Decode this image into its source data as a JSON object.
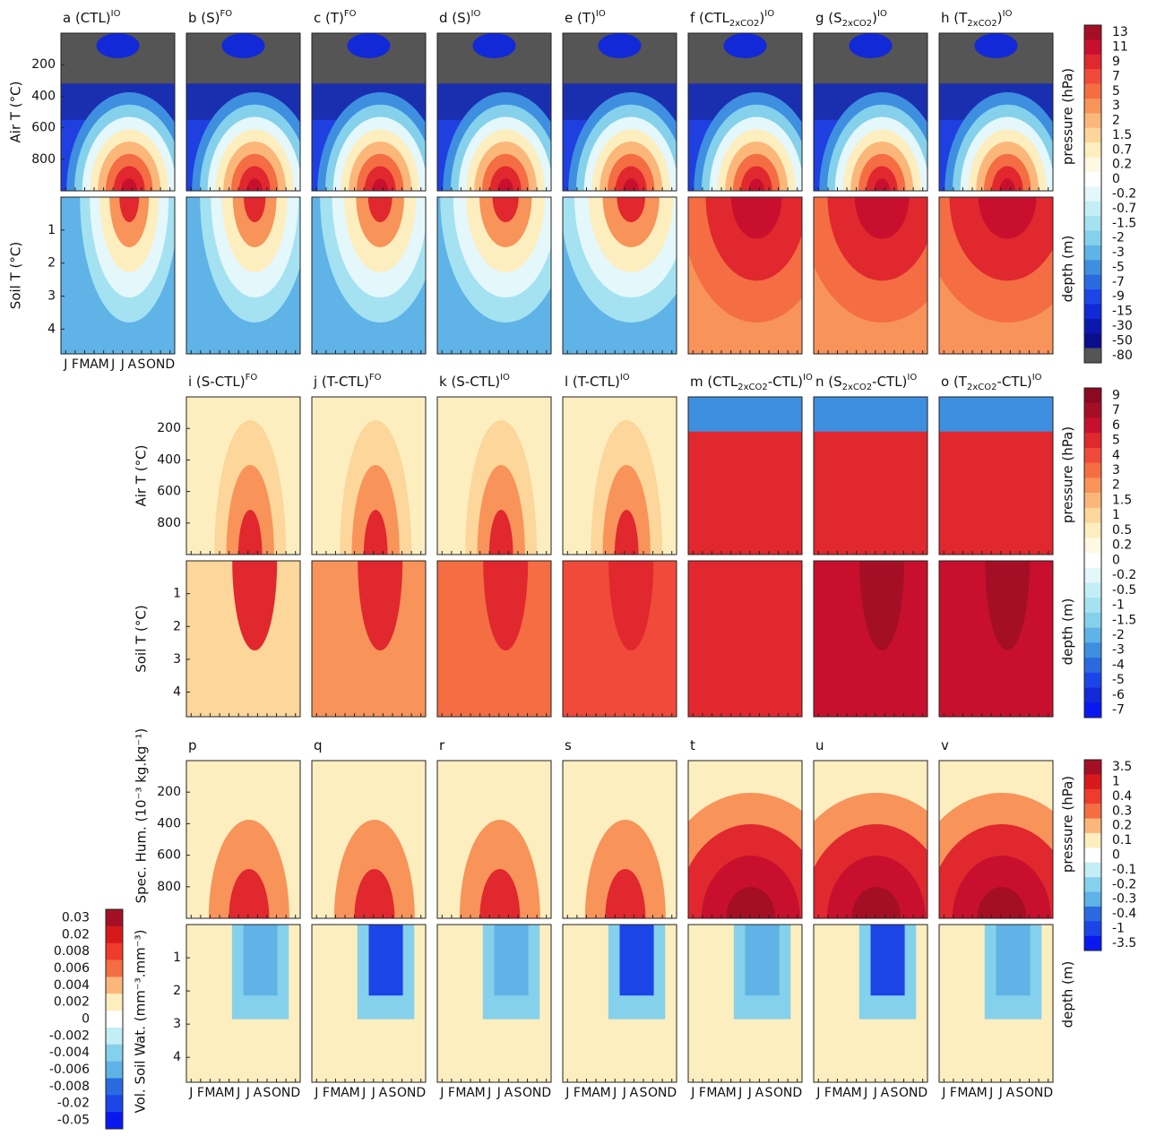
{
  "months": [
    "J",
    "F",
    "M",
    "A",
    "M",
    "J",
    "J",
    "A",
    "S",
    "O",
    "N",
    "D"
  ],
  "ylim_pressure": [
    0,
    1000
  ],
  "pressure_ticks": [
    200,
    400,
    600,
    800
  ],
  "ylim_depth": [
    0,
    4.75
  ],
  "depth_ticks": [
    1,
    2,
    3,
    4
  ],
  "groups": [
    {
      "row_labels": [
        "Air T (°C)",
        "Soil T (°C)"
      ],
      "panels": [
        {
          "title": [
            {
              "text": "a (CTL)"
            },
            {
              "sup": "IO"
            }
          ]
        },
        {
          "title": [
            {
              "text": "b (S)"
            },
            {
              "sup": "FO"
            }
          ]
        },
        {
          "title": [
            {
              "text": "c (T)"
            },
            {
              "sup": "FO"
            }
          ]
        },
        {
          "title": [
            {
              "text": "d (S)"
            },
            {
              "sup": "IO"
            }
          ]
        },
        {
          "title": [
            {
              "text": "e (T)"
            },
            {
              "sup": "IO"
            }
          ]
        },
        {
          "title": [
            {
              "text": "f (CTL"
            },
            {
              "sub": "2xCO2"
            },
            {
              "text": ")"
            },
            {
              "sup": "IO"
            }
          ]
        },
        {
          "title": [
            {
              "text": "g (S"
            },
            {
              "sub": "2xCO2"
            },
            {
              "text": ")"
            },
            {
              "sup": "IO"
            }
          ]
        },
        {
          "title": [
            {
              "text": "h (T"
            },
            {
              "sub": "2xCO2"
            },
            {
              "text": ")"
            },
            {
              "sup": "IO"
            }
          ]
        }
      ]
    },
    {
      "row_labels": [
        "Air T (°C)",
        "Soil T (°C)"
      ],
      "panels": [
        {
          "title": [
            {
              "text": "i (S-CTL)"
            },
            {
              "sup": "FO"
            }
          ]
        },
        {
          "title": [
            {
              "text": "j (T-CTL)"
            },
            {
              "sup": "FO"
            }
          ]
        },
        {
          "title": [
            {
              "text": "k (S-CTL)"
            },
            {
              "sup": "IO"
            }
          ]
        },
        {
          "title": [
            {
              "text": "l (T-CTL)"
            },
            {
              "sup": "IO"
            }
          ]
        },
        {
          "title": [
            {
              "text": "m (CTL"
            },
            {
              "sub": "2xCO2"
            },
            {
              "text": "-CTL)"
            },
            {
              "sup": "IO"
            }
          ]
        },
        {
          "title": [
            {
              "text": "n (S"
            },
            {
              "sub": "2xCO2"
            },
            {
              "text": "-CTL)"
            },
            {
              "sup": "IO"
            }
          ]
        },
        {
          "title": [
            {
              "text": "o (T"
            },
            {
              "sub": "2xCO2"
            },
            {
              "text": "-CTL)"
            },
            {
              "sup": "IO"
            }
          ]
        }
      ]
    },
    {
      "row_labels": [
        "Spec. Hum. (10⁻³ kg.kg⁻¹)"
      ],
      "panels": [
        {
          "title": [
            {
              "text": "p"
            }
          ]
        },
        {
          "title": [
            {
              "text": "q"
            }
          ]
        },
        {
          "title": [
            {
              "text": "r"
            }
          ]
        },
        {
          "title": [
            {
              "text": "s"
            }
          ]
        },
        {
          "title": [
            {
              "text": "t"
            }
          ]
        },
        {
          "title": [
            {
              "text": "u"
            }
          ]
        },
        {
          "title": [
            {
              "text": "v"
            }
          ]
        }
      ]
    }
  ],
  "colorbars": [
    {
      "labels": [
        "pressure (hPa)",
        "depth (m)"
      ],
      "levels": [
        13,
        11,
        9,
        7,
        5,
        3,
        2,
        1.5,
        0.7,
        0.2,
        0,
        -0.2,
        -0.7,
        -1.5,
        -2,
        -3,
        -5,
        -7,
        -9,
        -15,
        -30,
        -50,
        -80
      ],
      "colors": [
        "#a50f26",
        "#c8102e",
        "#e0282e",
        "#f04a3a",
        "#f46d43",
        "#f8935a",
        "#fbb77a",
        "#fcd69a",
        "#fdeebf",
        "#fff8e3",
        "#ffffff",
        "#e4f7fb",
        "#c4eef6",
        "#a4e2f1",
        "#85d1ec",
        "#5fb3e6",
        "#3e8fe0",
        "#2a6ae0",
        "#1c45e8",
        "#1229d8",
        "#0a18b0",
        "#0a0e8a",
        "#555555"
      ]
    },
    {
      "labels": [
        "pressure (hPa)",
        "depth (m)"
      ],
      "levels": [
        9,
        7,
        6,
        5,
        4,
        3,
        2,
        1.5,
        1,
        0.5,
        0.2,
        0,
        -0.2,
        -0.5,
        -1,
        -1.5,
        -2,
        -3,
        -4,
        -5,
        -6,
        -7
      ],
      "colors": [
        "#8b0a22",
        "#a50f26",
        "#c8102e",
        "#e0282e",
        "#f04a3a",
        "#f46d43",
        "#f8935a",
        "#fbb77a",
        "#fcd69a",
        "#fdeebf",
        "#fff8e3",
        "#ffffff",
        "#e4f7fb",
        "#c4eef6",
        "#a4e2f1",
        "#85d1ec",
        "#5fb3e6",
        "#3e8fe0",
        "#2a6ae0",
        "#1c45e8",
        "#1229d8",
        "#0a18f0"
      ]
    },
    {
      "labels": [
        "pressure (hPa)",
        "depth (m)"
      ],
      "levels": [
        3.5,
        1,
        0.4,
        0.3,
        0.2,
        0.1,
        0,
        -0.1,
        -0.2,
        -0.3,
        -0.4,
        -1,
        -3.5
      ],
      "colors": [
        "#a50f26",
        "#d7191c",
        "#ef3b2c",
        "#f46d43",
        "#fbb77a",
        "#fdeebf",
        "#ffffff",
        "#c4eef6",
        "#85d1ec",
        "#5fb3e6",
        "#2a6ae0",
        "#1c45e8",
        "#0a18f0"
      ]
    },
    {
      "labels": [
        "Vol. Soil Wat. (mm⁻³.mm⁻³)"
      ],
      "levels": [
        0.03,
        0.02,
        0.008,
        0.006,
        0.004,
        0.002,
        0,
        -0.002,
        -0.004,
        -0.006,
        -0.008,
        -0.02,
        -0.05
      ],
      "colors": [
        "#a50f26",
        "#d7191c",
        "#ef3b2c",
        "#f46d43",
        "#fbb77a",
        "#fdeebf",
        "#ffffff",
        "#c4eef6",
        "#85d1ec",
        "#5fb3e6",
        "#2a6ae0",
        "#1c45e8",
        "#0a18f0"
      ]
    }
  ]
}
